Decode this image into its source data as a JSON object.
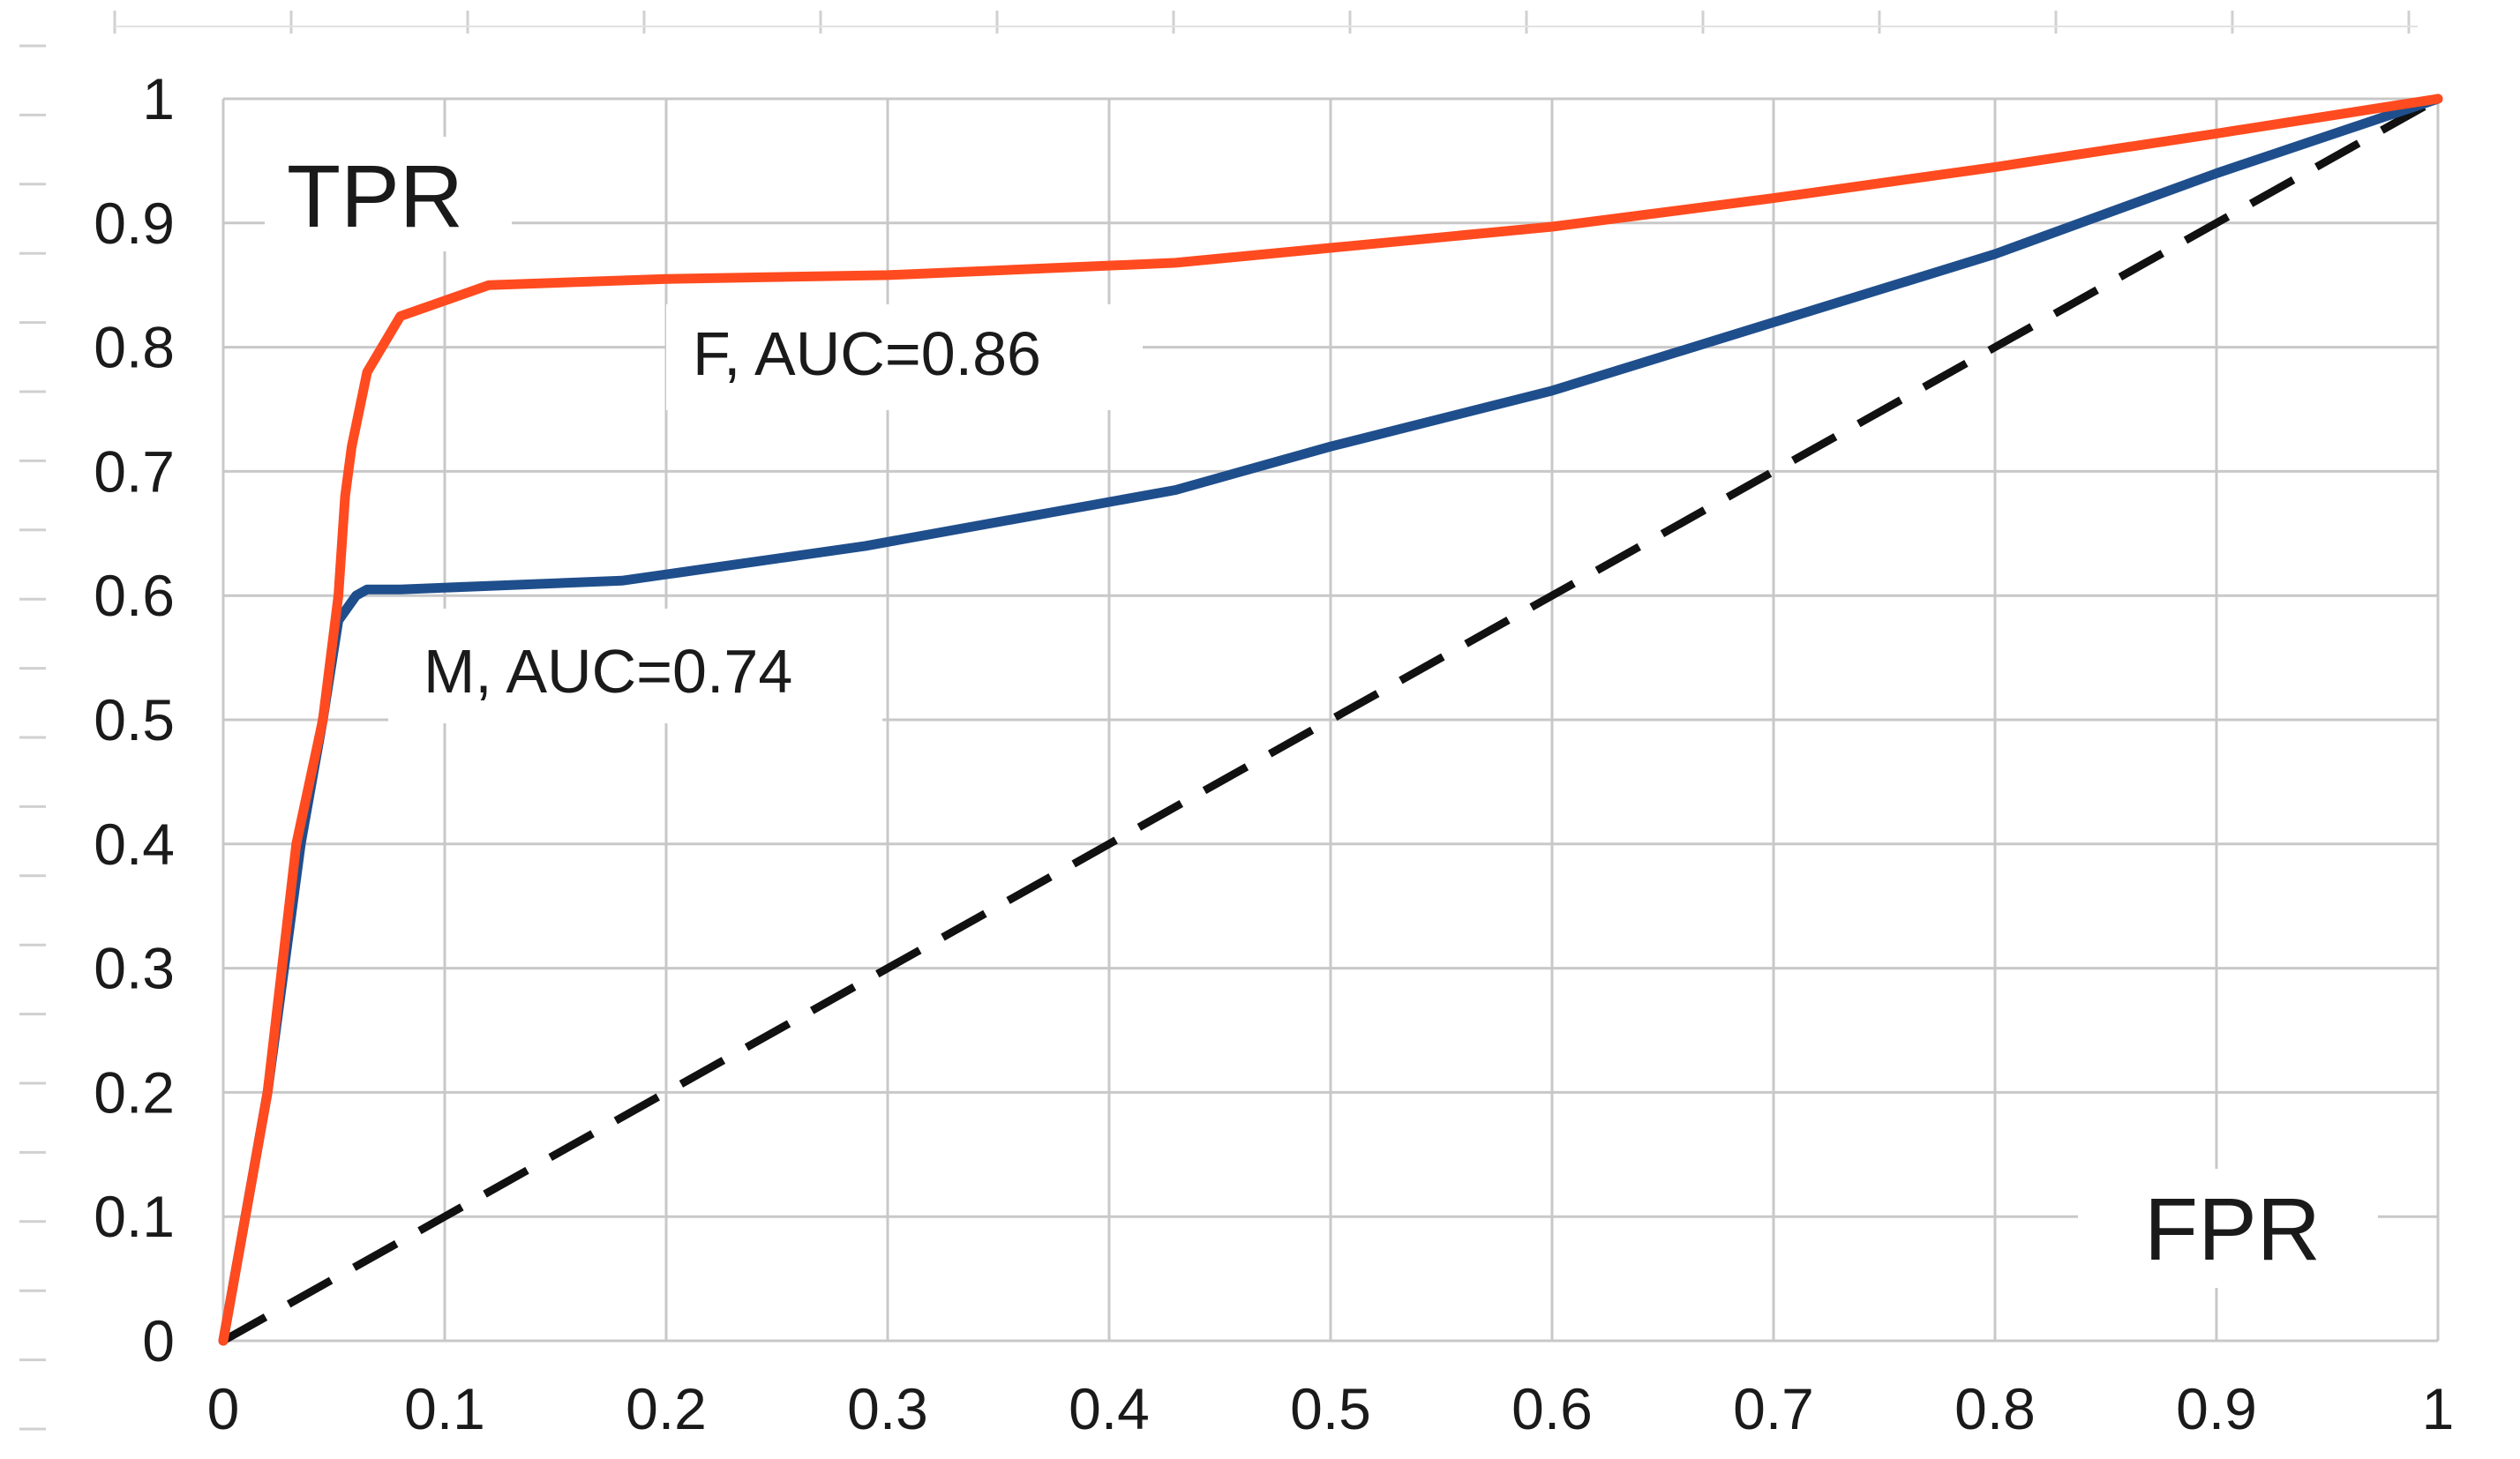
{
  "chart_data": {
    "type": "line",
    "xlabel": "FPR",
    "ylabel": "TPR",
    "xlim": [
      0,
      1
    ],
    "ylim": [
      0,
      1
    ],
    "xticks": [
      "0",
      "0.1",
      "0.2",
      "0.3",
      "0.4",
      "0.5",
      "0.6",
      "0.7",
      "0.8",
      "0.9",
      "1"
    ],
    "yticks": [
      "0",
      "0.1",
      "0.2",
      "0.3",
      "0.4",
      "0.5",
      "0.6",
      "0.7",
      "0.8",
      "0.9",
      "1"
    ],
    "grid": true,
    "series": [
      {
        "name": "F, AUC=0.86",
        "color": "#ff4b1f",
        "dash": false,
        "x": [
          0,
          0.02,
          0.033,
          0.045,
          0.052,
          0.055,
          0.058,
          0.065,
          0.08,
          0.12,
          0.2,
          0.3,
          0.43,
          0.5,
          0.6,
          0.7,
          0.8,
          0.9,
          1
        ],
        "y": [
          0,
          0.2,
          0.4,
          0.5,
          0.6,
          0.68,
          0.72,
          0.78,
          0.825,
          0.85,
          0.855,
          0.858,
          0.868,
          0.88,
          0.897,
          0.92,
          0.945,
          0.972,
          1
        ]
      },
      {
        "name": "M, AUC=0.74",
        "color": "#1f4e8c",
        "dash": false,
        "x": [
          0,
          0.02,
          0.035,
          0.045,
          0.052,
          0.06,
          0.065,
          0.08,
          0.18,
          0.29,
          0.43,
          0.5,
          0.6,
          0.7,
          0.8,
          0.9,
          1
        ],
        "y": [
          0,
          0.2,
          0.4,
          0.5,
          0.58,
          0.6,
          0.605,
          0.605,
          0.612,
          0.64,
          0.685,
          0.72,
          0.765,
          0.82,
          0.875,
          0.94,
          1
        ]
      },
      {
        "name": "",
        "color": "#111111",
        "dash": true,
        "x": [
          0,
          1
        ],
        "y": [
          0,
          1
        ]
      }
    ],
    "annotations": [
      {
        "text": "F, AUC=0.86",
        "x": 0.105,
        "y": 0.8
      },
      {
        "text": "M, AUC=0.74",
        "x": -0.015,
        "y": 0.535
      }
    ]
  }
}
